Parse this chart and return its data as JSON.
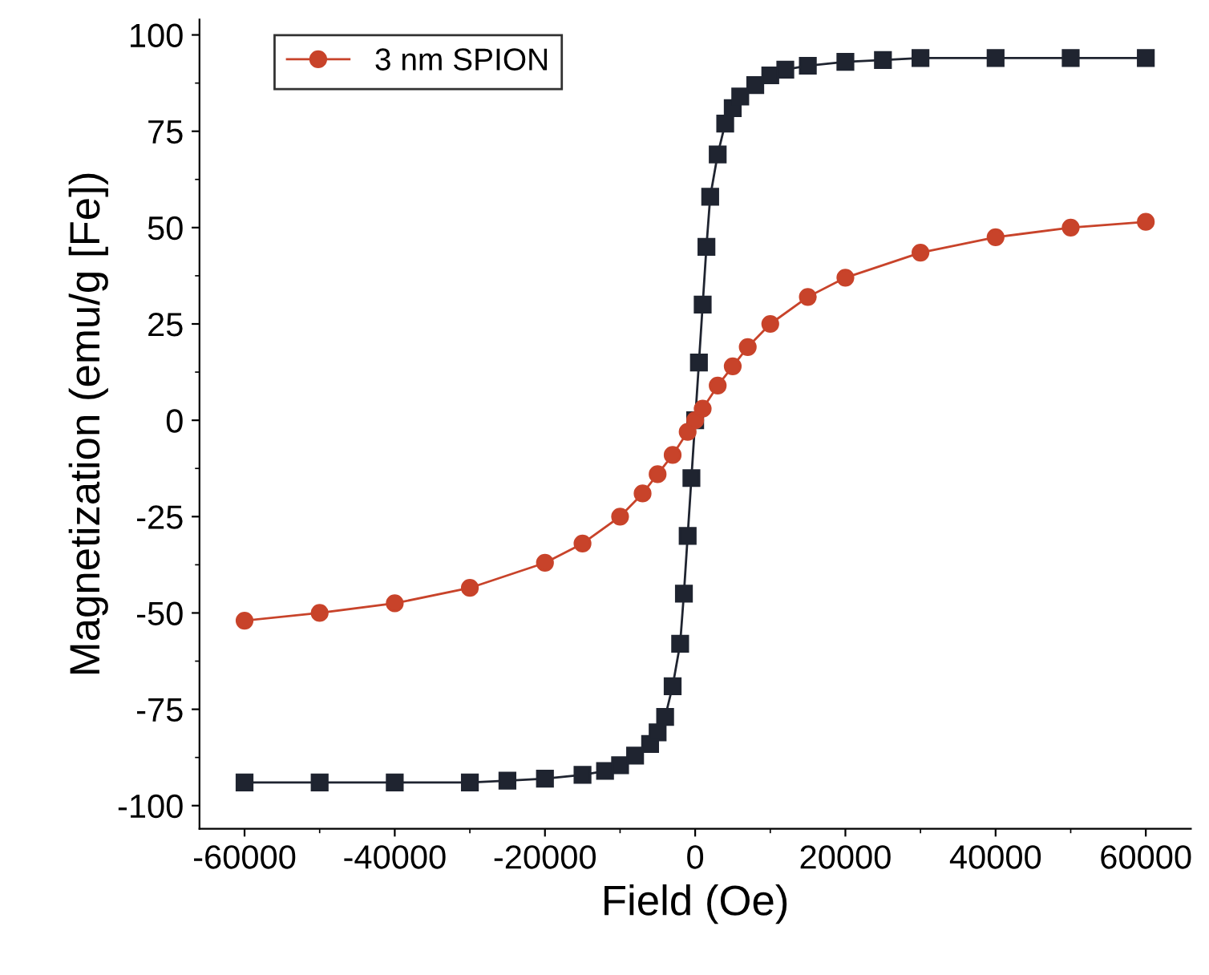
{
  "chart_data": {
    "type": "line",
    "xlabel": "Field (Oe)",
    "ylabel": "Magnetization (emu/g [Fe])",
    "xlim": [
      -66000,
      66000
    ],
    "ylim": [
      -106,
      104
    ],
    "xticks": [
      -60000,
      -40000,
      -20000,
      0,
      20000,
      40000,
      60000
    ],
    "yticks": [
      -100,
      -75,
      -50,
      -25,
      0,
      25,
      50,
      75,
      100
    ],
    "grid": false,
    "legend": "top left",
    "line_style": "solid",
    "series": [
      {
        "color": "#1f2430",
        "marker": "square",
        "x": [
          -60000,
          -50000,
          -40000,
          -30000,
          -25000,
          -20000,
          -15000,
          -12000,
          -10000,
          -8000,
          -6000,
          -5000,
          -4000,
          -3000,
          -2000,
          -1500,
          -1000,
          -500,
          0,
          500,
          1000,
          1500,
          2000,
          3000,
          4000,
          5000,
          6000,
          8000,
          10000,
          12000,
          15000,
          20000,
          25000,
          30000,
          40000,
          50000,
          60000
        ],
        "values": [
          -94,
          -94,
          -94,
          -94,
          -93.5,
          -93,
          -92,
          -91,
          -89.5,
          -87,
          -84,
          -81,
          -77,
          -69,
          -58,
          -45,
          -30,
          -15,
          0,
          15,
          30,
          45,
          58,
          69,
          77,
          81,
          84,
          87,
          89.5,
          91,
          92,
          93,
          93.5,
          94,
          94,
          94,
          94
        ]
      },
      {
        "name": "3 nm SPION",
        "color": "#c8432a",
        "marker": "circle",
        "x": [
          -60000,
          -50000,
          -40000,
          -30000,
          -20000,
          -15000,
          -10000,
          -7000,
          -5000,
          -3000,
          -1000,
          0,
          1000,
          3000,
          5000,
          7000,
          10000,
          15000,
          20000,
          30000,
          40000,
          50000,
          60000
        ],
        "values": [
          -52,
          -50,
          -47.5,
          -43.5,
          -37,
          -32,
          -25,
          -19,
          -14,
          -9,
          -3,
          0,
          3,
          9,
          14,
          19,
          25,
          32,
          37,
          43.5,
          47.5,
          50,
          51.5
        ]
      }
    ]
  }
}
